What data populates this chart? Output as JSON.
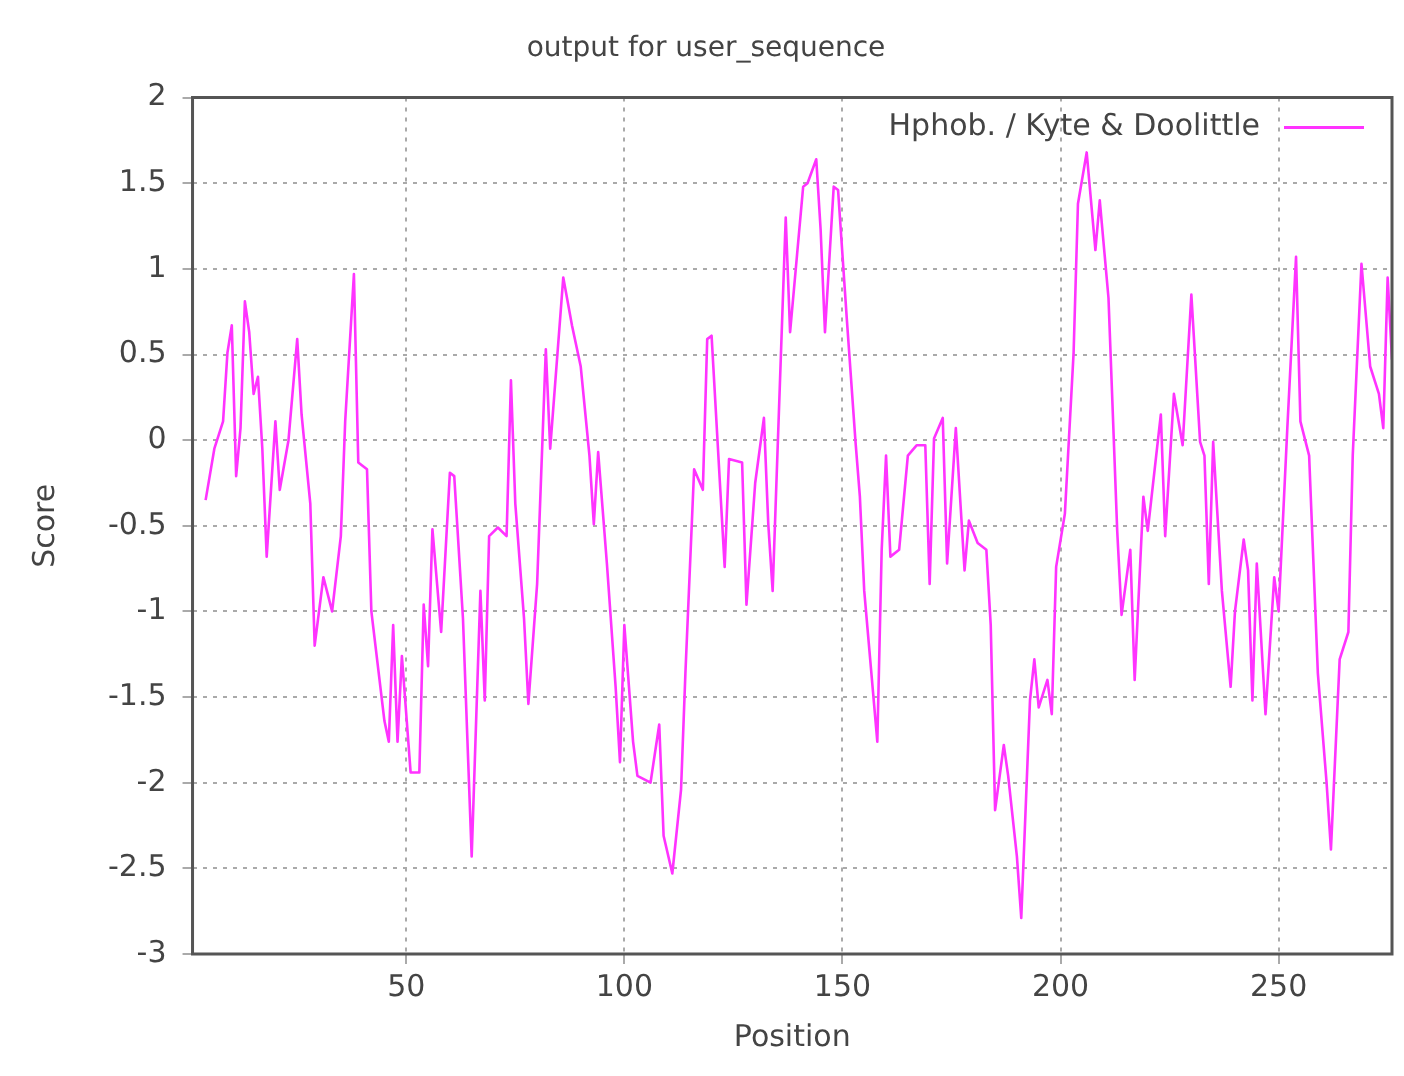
{
  "chart_data": {
    "type": "line",
    "title": "output for user_sequence",
    "xlabel": "Position",
    "ylabel": "Score",
    "xlim": [
      1,
      276
    ],
    "xticks": [
      50,
      100,
      150,
      200,
      250
    ],
    "ylim": [
      -3,
      2
    ],
    "yticks": [
      -3,
      -2.5,
      -2,
      -1.5,
      -1,
      -0.5,
      0,
      0.5,
      1,
      1.5,
      2
    ],
    "grid": true,
    "legend": "top right",
    "marker": "none",
    "line_style": "solid",
    "series": [
      {
        "name": "Hphob. / Kyte & Doolittle",
        "color": "#ff33ff",
        "x": [
          4,
          6,
          8,
          9,
          10,
          11,
          12,
          13,
          14,
          15,
          16,
          17,
          18,
          20,
          21,
          23,
          25,
          26,
          28,
          29,
          30,
          31,
          33,
          35,
          36,
          38,
          39,
          41,
          42,
          45,
          46,
          47,
          48,
          49,
          51,
          53,
          54,
          55,
          56,
          58,
          60,
          61,
          63,
          65,
          67,
          68,
          69,
          71,
          73,
          74,
          75,
          77,
          78,
          80,
          82,
          83,
          86,
          88,
          90,
          92,
          93,
          94,
          96,
          98,
          99,
          100,
          102,
          103,
          106,
          108,
          109,
          111,
          113,
          114,
          116,
          118,
          119,
          120,
          123,
          124,
          127,
          128,
          130,
          132,
          133,
          134,
          137,
          138,
          141,
          142,
          144,
          145,
          146,
          148,
          149,
          151,
          153,
          154,
          155,
          158,
          159,
          160,
          161,
          163,
          165,
          167,
          169,
          170,
          171,
          173,
          174,
          176,
          178,
          179,
          181,
          183,
          184,
          185,
          187,
          188,
          190,
          191,
          193,
          194,
          195,
          197,
          198,
          199,
          201,
          203,
          204,
          206,
          208,
          209,
          211,
          213,
          214,
          216,
          217,
          219,
          220,
          223,
          224,
          226,
          228,
          230,
          232,
          233,
          234,
          235,
          237,
          239,
          240,
          242,
          243,
          244,
          245,
          247,
          249,
          250,
          252,
          254,
          255,
          257,
          259,
          261,
          262,
          264,
          266,
          267,
          269,
          271,
          273,
          274,
          275,
          276
        ],
        "values": [
          -0.35,
          -0.05,
          0.11,
          0.51,
          0.67,
          -0.21,
          0.07,
          0.81,
          0.63,
          0.27,
          0.37,
          -0.05,
          -0.68,
          0.11,
          -0.29,
          0,
          0.59,
          0.15,
          -0.37,
          -1.2,
          -1.0,
          -0.8,
          -1.0,
          -0.56,
          0.11,
          0.97,
          -0.13,
          -0.17,
          -1.0,
          -1.64,
          -1.76,
          -1.08,
          -1.76,
          -1.26,
          -1.94,
          -1.94,
          -0.96,
          -1.32,
          -0.52,
          -1.12,
          -0.19,
          -0.21,
          -1.04,
          -2.43,
          -0.88,
          -1.52,
          -0.56,
          -0.51,
          -0.56,
          0.35,
          -0.37,
          -1.04,
          -1.54,
          -0.84,
          0.53,
          -0.05,
          0.95,
          0.67,
          0.43,
          -0.09,
          -0.49,
          -0.07,
          -0.72,
          -1.44,
          -1.88,
          -1.08,
          -1.76,
          -1.96,
          -2.0,
          -1.66,
          -2.31,
          -2.53,
          -2.04,
          -1.36,
          -0.17,
          -0.29,
          0.59,
          0.61,
          -0.74,
          -0.11,
          -0.13,
          -0.96,
          -0.25,
          0.13,
          -0.49,
          -0.88,
          1.3,
          0.63,
          1.48,
          1.5,
          1.64,
          1.23,
          0.63,
          1.48,
          1.46,
          0.71,
          -0.01,
          -0.33,
          -0.88,
          -1.76,
          -0.64,
          -0.09,
          -0.68,
          -0.64,
          -0.09,
          -0.03,
          -0.03,
          -0.84,
          0.01,
          0.13,
          -0.72,
          0.07,
          -0.76,
          -0.47,
          -0.6,
          -0.64,
          -1.08,
          -2.16,
          -1.78,
          -1.96,
          -2.43,
          -2.79,
          -1.52,
          -1.28,
          -1.56,
          -1.4,
          -1.6,
          -0.74,
          -0.43,
          0.51,
          1.38,
          1.68,
          1.11,
          1.4,
          0.83,
          -0.53,
          -1.02,
          -0.64,
          -1.4,
          -0.33,
          -0.53,
          0.15,
          -0.56,
          0.27,
          -0.03,
          0.85,
          -0.01,
          -0.09,
          -0.84,
          -0.01,
          -0.88,
          -1.44,
          -1.0,
          -0.58,
          -0.76,
          -1.52,
          -0.72,
          -1.6,
          -0.8,
          -1.0,
          0.07,
          1.07,
          0.11,
          -0.09,
          -1.36,
          -2.0,
          -2.39,
          -1.28,
          -1.12,
          -0.09,
          1.03,
          0.43,
          0.27,
          0.07,
          0.95,
          0.47
        ]
      }
    ]
  }
}
